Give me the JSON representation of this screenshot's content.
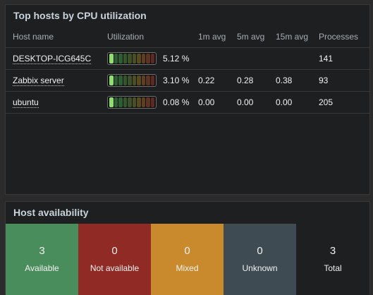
{
  "cpu_widget": {
    "title": "Top hosts by CPU utilization",
    "columns": [
      "Host name",
      "Utilization",
      "1m avg",
      "5m avg",
      "15m avg",
      "Processes"
    ],
    "rows": [
      {
        "host": "DESKTOP-ICG645C",
        "util": "5.12 %",
        "util_fraction": 0.0512,
        "avg1": "",
        "avg5": "",
        "avg15": "",
        "processes": "141"
      },
      {
        "host": "Zabbix server",
        "util": "3.10 %",
        "util_fraction": 0.031,
        "avg1": "0.22",
        "avg5": "0.28",
        "avg15": "0.38",
        "processes": "93"
      },
      {
        "host": "ubuntu",
        "util": "0.08 %",
        "util_fraction": 0.0008,
        "avg1": "0.00",
        "avg5": "0.00",
        "avg15": "0.00",
        "processes": "205"
      }
    ],
    "bar_segment_colors": [
      "#2e5d33",
      "#2e5d33",
      "#2e5d33",
      "#35552c",
      "#3d5128",
      "#4a5024",
      "#574a22",
      "#5e3f22",
      "#5f3322",
      "#5c2a22"
    ],
    "bar_active_color": "#8fe06a"
  },
  "availability_widget": {
    "title": "Host availability",
    "tiles": [
      {
        "count": "3",
        "label": "Available"
      },
      {
        "count": "0",
        "label": "Not available"
      },
      {
        "count": "0",
        "label": "Mixed"
      },
      {
        "count": "0",
        "label": "Unknown"
      },
      {
        "count": "3",
        "label": "Total"
      }
    ]
  }
}
